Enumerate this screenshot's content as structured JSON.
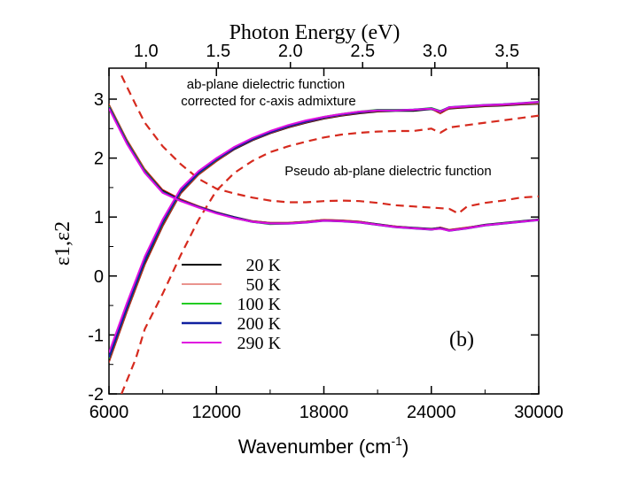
{
  "chart_data": {
    "type": "line",
    "panel_label": "(b)",
    "xlabel_prefix": "Wavenumber (cm",
    "xlabel_exp": "-1",
    "xlabel_suffix": ")",
    "ylabel": "ε1,ε2",
    "top_axis_label": "Photon Energy (eV)",
    "xlim": [
      6000,
      30000
    ],
    "ylim": [
      -2,
      3.2
    ],
    "x_ticks": [
      6000,
      12000,
      18000,
      24000,
      30000
    ],
    "x_tick_labels": [
      "6000",
      "12000",
      "18000",
      "24000",
      "30000"
    ],
    "y_ticks": [
      -2,
      -1,
      0,
      1,
      2,
      3
    ],
    "y_tick_labels": [
      "-2",
      "-1",
      "0",
      "1",
      "2",
      "3"
    ],
    "top_ticks_ev": [
      1.0,
      1.5,
      2.0,
      2.5,
      3.0,
      3.5
    ],
    "top_tick_labels": [
      "1.0",
      "1.5",
      "2.0",
      "2.5",
      "3.0",
      "3.5"
    ],
    "annotations": [
      "ab-plane dielectric function",
      "corrected for c-axis admixture",
      "Pseudo ab-plane dielectric function"
    ],
    "legend": [
      {
        "label": "20 K",
        "color": "#000000",
        "width": 2
      },
      {
        "label": "50 K",
        "color": "#d62a1e",
        "width": 1
      },
      {
        "label": "100 K",
        "color": "#22cc22",
        "width": 2
      },
      {
        "label": "200 K",
        "color": "#1020a0",
        "width": 2.5
      },
      {
        "label": "290 K",
        "color": "#e010e0",
        "width": 2
      }
    ],
    "series": [
      {
        "name": "20 K",
        "eps1": {
          "x": [
            6000,
            7000,
            8000,
            9000,
            10000,
            11000,
            12000,
            13000,
            14000,
            15000,
            16000,
            17000,
            18000,
            19000,
            20000,
            21000,
            22000,
            23000,
            24000,
            24500,
            25000,
            26000,
            27000,
            28000,
            29000,
            30000
          ],
          "y": [
            2.9,
            2.3,
            1.8,
            1.45,
            1.3,
            1.18,
            1.08,
            1.0,
            0.93,
            0.9,
            0.9,
            0.92,
            0.95,
            0.94,
            0.92,
            0.88,
            0.84,
            0.82,
            0.8,
            0.82,
            0.78,
            0.82,
            0.87,
            0.9,
            0.93,
            0.96
          ]
        },
        "eps2": {
          "x": [
            6000,
            7000,
            8000,
            9000,
            10000,
            11000,
            12000,
            13000,
            14000,
            15000,
            16000,
            17000,
            18000,
            19000,
            20000,
            21000,
            22000,
            23000,
            24000,
            24500,
            25000,
            26000,
            27000,
            28000,
            29000,
            30000
          ],
          "y": [
            -1.45,
            -0.6,
            0.2,
            0.85,
            1.4,
            1.72,
            1.95,
            2.15,
            2.3,
            2.42,
            2.52,
            2.6,
            2.67,
            2.72,
            2.76,
            2.79,
            2.8,
            2.8,
            2.83,
            2.78,
            2.84,
            2.86,
            2.88,
            2.89,
            2.91,
            2.92
          ]
        }
      },
      {
        "name": "50 K",
        "eps1": {
          "x": [
            6000,
            7000,
            8000,
            9000,
            10000,
            11000,
            12000,
            13000,
            14000,
            15000,
            16000,
            17000,
            18000,
            19000,
            20000,
            21000,
            22000,
            23000,
            24000,
            24500,
            25000,
            26000,
            27000,
            28000,
            29000,
            30000
          ],
          "y": [
            2.92,
            2.32,
            1.82,
            1.47,
            1.31,
            1.19,
            1.09,
            1.0,
            0.94,
            0.91,
            0.91,
            0.93,
            0.96,
            0.95,
            0.93,
            0.88,
            0.85,
            0.82,
            0.8,
            0.83,
            0.79,
            0.83,
            0.87,
            0.9,
            0.93,
            0.96
          ]
        },
        "eps2": {
          "x": [
            6000,
            7000,
            8000,
            9000,
            10000,
            11000,
            12000,
            13000,
            14000,
            15000,
            16000,
            17000,
            18000,
            19000,
            20000,
            21000,
            22000,
            23000,
            24000,
            24500,
            25000,
            26000,
            27000,
            28000,
            29000,
            30000
          ],
          "y": [
            -1.47,
            -0.62,
            0.18,
            0.84,
            1.39,
            1.71,
            1.94,
            2.15,
            2.3,
            2.42,
            2.52,
            2.6,
            2.67,
            2.72,
            2.76,
            2.79,
            2.8,
            2.81,
            2.83,
            2.75,
            2.84,
            2.86,
            2.88,
            2.89,
            2.91,
            2.92
          ]
        }
      },
      {
        "name": "100 K",
        "eps1": {
          "x": [
            6000,
            7000,
            8000,
            9000,
            10000,
            11000,
            12000,
            13000,
            14000,
            15000,
            16000,
            17000,
            18000,
            19000,
            20000,
            21000,
            22000,
            23000,
            24000,
            24500,
            25000,
            26000,
            27000,
            28000,
            29000,
            30000
          ],
          "y": [
            2.88,
            2.28,
            1.78,
            1.43,
            1.28,
            1.17,
            1.07,
            0.98,
            0.92,
            0.88,
            0.89,
            0.91,
            0.94,
            0.93,
            0.91,
            0.87,
            0.83,
            0.81,
            0.79,
            0.81,
            0.77,
            0.81,
            0.86,
            0.89,
            0.92,
            0.95
          ]
        },
        "eps2": {
          "x": [
            6000,
            7000,
            8000,
            9000,
            10000,
            11000,
            12000,
            13000,
            14000,
            15000,
            16000,
            17000,
            18000,
            19000,
            20000,
            21000,
            22000,
            23000,
            24000,
            24500,
            25000,
            26000,
            27000,
            28000,
            29000,
            30000
          ],
          "y": [
            -1.4,
            -0.55,
            0.25,
            0.9,
            1.43,
            1.74,
            1.97,
            2.17,
            2.33,
            2.45,
            2.55,
            2.63,
            2.7,
            2.75,
            2.79,
            2.82,
            2.82,
            2.82,
            2.85,
            2.8,
            2.86,
            2.88,
            2.9,
            2.91,
            2.93,
            2.94
          ]
        }
      },
      {
        "name": "200 K",
        "eps1": {
          "x": [
            6000,
            7000,
            8000,
            9000,
            10000,
            11000,
            12000,
            13000,
            14000,
            15000,
            16000,
            17000,
            18000,
            19000,
            20000,
            21000,
            22000,
            23000,
            24000,
            24500,
            25000,
            26000,
            27000,
            28000,
            29000,
            30000
          ],
          "y": [
            2.86,
            2.26,
            1.76,
            1.42,
            1.28,
            1.17,
            1.07,
            0.99,
            0.92,
            0.89,
            0.89,
            0.91,
            0.94,
            0.93,
            0.91,
            0.87,
            0.83,
            0.81,
            0.79,
            0.81,
            0.77,
            0.81,
            0.86,
            0.89,
            0.92,
            0.95
          ]
        },
        "eps2": {
          "x": [
            6000,
            7000,
            8000,
            9000,
            10000,
            11000,
            12000,
            13000,
            14000,
            15000,
            16000,
            17000,
            18000,
            19000,
            20000,
            21000,
            22000,
            23000,
            24000,
            24500,
            25000,
            26000,
            27000,
            28000,
            29000,
            30000
          ],
          "y": [
            -1.38,
            -0.53,
            0.27,
            0.92,
            1.44,
            1.75,
            1.98,
            2.17,
            2.32,
            2.44,
            2.54,
            2.62,
            2.69,
            2.74,
            2.78,
            2.81,
            2.81,
            2.82,
            2.84,
            2.79,
            2.86,
            2.88,
            2.9,
            2.91,
            2.93,
            2.95
          ]
        }
      },
      {
        "name": "290 K",
        "eps1": {
          "x": [
            6000,
            7000,
            8000,
            9000,
            10000,
            11000,
            12000,
            13000,
            14000,
            15000,
            16000,
            17000,
            18000,
            19000,
            20000,
            21000,
            22000,
            23000,
            24000,
            24500,
            25000,
            26000,
            27000,
            28000,
            29000,
            30000
          ],
          "y": [
            2.84,
            2.24,
            1.75,
            1.41,
            1.27,
            1.16,
            1.06,
            0.98,
            0.92,
            0.89,
            0.89,
            0.91,
            0.94,
            0.93,
            0.91,
            0.87,
            0.83,
            0.81,
            0.79,
            0.8,
            0.77,
            0.81,
            0.86,
            0.89,
            0.92,
            0.95
          ]
        },
        "eps2": {
          "x": [
            6000,
            7000,
            8000,
            9000,
            10000,
            11000,
            12000,
            13000,
            14000,
            15000,
            16000,
            17000,
            18000,
            19000,
            20000,
            21000,
            22000,
            23000,
            24000,
            24500,
            25000,
            26000,
            27000,
            28000,
            29000,
            30000
          ],
          "y": [
            -1.3,
            -0.46,
            0.33,
            0.96,
            1.48,
            1.78,
            2.0,
            2.19,
            2.34,
            2.46,
            2.56,
            2.64,
            2.7,
            2.75,
            2.79,
            2.81,
            2.81,
            2.82,
            2.84,
            2.79,
            2.86,
            2.88,
            2.9,
            2.91,
            2.93,
            2.95
          ]
        }
      }
    ],
    "pseudo_ab_plane": {
      "color": "#d62a1e",
      "eps1": {
        "x": [
          6700,
          7500,
          8000,
          9000,
          10000,
          11000,
          12000,
          13000,
          14000,
          15000,
          16000,
          17000,
          18000,
          19000,
          20000,
          21000,
          22000,
          23000,
          24000,
          25000,
          25500,
          26000,
          27000,
          28000,
          29000,
          30000
        ],
        "y": [
          3.4,
          2.9,
          2.6,
          2.2,
          1.9,
          1.65,
          1.48,
          1.4,
          1.33,
          1.28,
          1.25,
          1.25,
          1.27,
          1.28,
          1.27,
          1.24,
          1.2,
          1.18,
          1.16,
          1.14,
          1.06,
          1.18,
          1.24,
          1.28,
          1.33,
          1.35
        ]
      },
      "eps2": {
        "x": [
          6700,
          7500,
          8000,
          9000,
          10000,
          11000,
          12000,
          13000,
          14000,
          15000,
          16000,
          17000,
          18000,
          19000,
          20000,
          21000,
          22000,
          23000,
          24000,
          24500,
          25000,
          26000,
          27000,
          28000,
          29000,
          30000
        ],
        "y": [
          -2.0,
          -1.4,
          -0.9,
          -0.3,
          0.35,
          0.95,
          1.45,
          1.75,
          1.95,
          2.1,
          2.2,
          2.28,
          2.35,
          2.4,
          2.43,
          2.45,
          2.46,
          2.46,
          2.5,
          2.43,
          2.52,
          2.56,
          2.6,
          2.64,
          2.68,
          2.72
        ]
      }
    }
  }
}
